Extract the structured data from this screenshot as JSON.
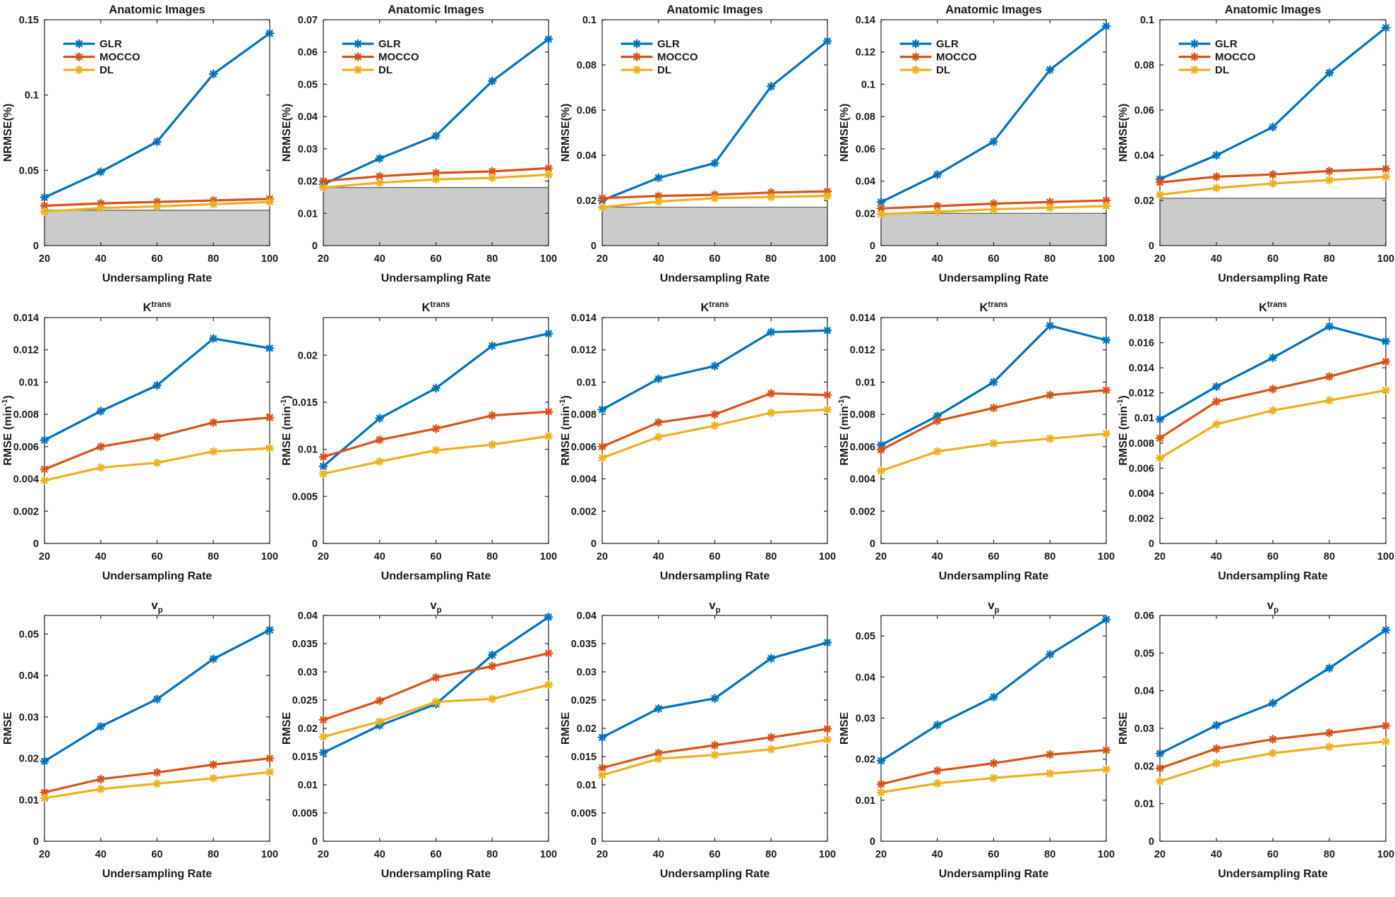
{
  "figure": {
    "x_label": "Undersampling Rate",
    "x_ticks": [
      20,
      40,
      60,
      80,
      100
    ],
    "legend_labels": [
      "GLR",
      "MOCCO",
      "DL"
    ],
    "colors": {
      "GLR": "#0072BD",
      "MOCCO": "#D95319",
      "DL": "#EDB120"
    },
    "shaded_region_fill": "#CBCBCB",
    "shaded_region_edge": "#6E6E6E",
    "axis_color": "#262626"
  },
  "chart_data": [
    {
      "type": "line",
      "row": 1,
      "col": 1,
      "title": {
        "text": "Anatomic Images"
      },
      "ylabel": {
        "text": "NRMSE(%)"
      },
      "xlabel": "Undersampling Rate",
      "x": [
        20,
        40,
        60,
        80,
        100
      ],
      "ylim": [
        0,
        0.15
      ],
      "yticks": [
        0,
        0.05,
        0.1,
        0.15
      ],
      "legend_visible": true,
      "shaded_region_top": 0.0235,
      "series": [
        {
          "name": "GLR",
          "values": [
            0.032,
            0.049,
            0.069,
            0.114,
            0.141
          ]
        },
        {
          "name": "MOCCO",
          "values": [
            0.0265,
            0.028,
            0.029,
            0.03,
            0.031
          ]
        },
        {
          "name": "DL",
          "values": [
            0.0225,
            0.025,
            0.026,
            0.0275,
            0.029
          ]
        }
      ]
    },
    {
      "type": "line",
      "row": 1,
      "col": 2,
      "title": {
        "text": "Anatomic Images"
      },
      "ylabel": {
        "text": "NRMSE(%)"
      },
      "xlabel": "Undersampling Rate",
      "x": [
        20,
        40,
        60,
        80,
        100
      ],
      "ylim": [
        0,
        0.07
      ],
      "yticks": [
        0,
        0.01,
        0.02,
        0.03,
        0.04,
        0.05,
        0.06,
        0.07
      ],
      "legend_visible": true,
      "shaded_region_top": 0.018,
      "series": [
        {
          "name": "GLR",
          "values": [
            0.019,
            0.027,
            0.034,
            0.051,
            0.064
          ]
        },
        {
          "name": "MOCCO",
          "values": [
            0.02,
            0.0215,
            0.0225,
            0.023,
            0.024
          ]
        },
        {
          "name": "DL",
          "values": [
            0.018,
            0.0195,
            0.0205,
            0.021,
            0.022
          ]
        }
      ]
    },
    {
      "type": "line",
      "row": 1,
      "col": 3,
      "title": {
        "text": "Anatomic Images"
      },
      "ylabel": {
        "text": "NRMSE(%)"
      },
      "xlabel": "Undersampling Rate",
      "x": [
        20,
        40,
        60,
        80,
        100
      ],
      "ylim": [
        0,
        0.1
      ],
      "yticks": [
        0,
        0.02,
        0.04,
        0.06,
        0.08,
        0.1
      ],
      "legend_visible": true,
      "shaded_region_top": 0.017,
      "series": [
        {
          "name": "GLR",
          "values": [
            0.02,
            0.03,
            0.0365,
            0.0705,
            0.0905
          ]
        },
        {
          "name": "MOCCO",
          "values": [
            0.021,
            0.022,
            0.0225,
            0.0235,
            0.024
          ]
        },
        {
          "name": "DL",
          "values": [
            0.017,
            0.0195,
            0.021,
            0.0215,
            0.022
          ]
        }
      ]
    },
    {
      "type": "line",
      "row": 1,
      "col": 4,
      "title": {
        "text": "Anatomic Images"
      },
      "ylabel": {
        "text": "NRMSE(%)"
      },
      "xlabel": "Undersampling Rate",
      "x": [
        20,
        40,
        60,
        80,
        100
      ],
      "ylim": [
        0,
        0.14
      ],
      "yticks": [
        0,
        0.02,
        0.04,
        0.06,
        0.08,
        0.1,
        0.12,
        0.14
      ],
      "legend_visible": true,
      "shaded_region_top": 0.02,
      "series": [
        {
          "name": "GLR",
          "values": [
            0.027,
            0.044,
            0.0645,
            0.109,
            0.136
          ]
        },
        {
          "name": "MOCCO",
          "values": [
            0.023,
            0.0245,
            0.026,
            0.027,
            0.028
          ]
        },
        {
          "name": "DL",
          "values": [
            0.0195,
            0.021,
            0.0225,
            0.0235,
            0.0245
          ]
        }
      ]
    },
    {
      "type": "line",
      "row": 1,
      "col": 5,
      "title": {
        "text": "Anatomic Images"
      },
      "ylabel": {
        "text": "NRMSE(%)"
      },
      "xlabel": "Undersampling Rate",
      "x": [
        20,
        40,
        60,
        80,
        100
      ],
      "ylim": [
        0,
        0.1
      ],
      "yticks": [
        0,
        0.02,
        0.04,
        0.06,
        0.08,
        0.1
      ],
      "legend_visible": true,
      "shaded_region_top": 0.021,
      "series": [
        {
          "name": "GLR",
          "values": [
            0.0295,
            0.04,
            0.0525,
            0.0765,
            0.0965
          ]
        },
        {
          "name": "MOCCO",
          "values": [
            0.028,
            0.0305,
            0.0315,
            0.033,
            0.034
          ]
        },
        {
          "name": "DL",
          "values": [
            0.0225,
            0.0255,
            0.0275,
            0.029,
            0.0305
          ]
        }
      ]
    },
    {
      "type": "line",
      "row": 2,
      "col": 1,
      "title": {
        "text": "K",
        "sup": "trans"
      },
      "ylabel": {
        "text": "RMSE (min",
        "sup": "-1",
        "after": ")"
      },
      "xlabel": "Undersampling Rate",
      "x": [
        20,
        40,
        60,
        80,
        100
      ],
      "ylim": [
        0,
        0.014
      ],
      "yticks": [
        0,
        0.002,
        0.004,
        0.006,
        0.008,
        0.01,
        0.012,
        0.014
      ],
      "legend_visible": false,
      "series": [
        {
          "name": "GLR",
          "values": [
            0.0064,
            0.0082,
            0.0098,
            0.0127,
            0.0121
          ]
        },
        {
          "name": "MOCCO",
          "values": [
            0.0046,
            0.006,
            0.0066,
            0.0075,
            0.0078
          ]
        },
        {
          "name": "DL",
          "values": [
            0.0039,
            0.0047,
            0.005,
            0.0057,
            0.0059
          ]
        }
      ]
    },
    {
      "type": "line",
      "row": 2,
      "col": 2,
      "title": {
        "text": "K",
        "sup": "trans"
      },
      "ylabel": {
        "text": "RMSE (min",
        "sup": "-1",
        "after": ")"
      },
      "xlabel": "Undersampling Rate",
      "x": [
        20,
        40,
        60,
        80,
        100
      ],
      "ylim": [
        0,
        0.024
      ],
      "yticks": [
        0,
        0.005,
        0.01,
        0.015,
        0.02
      ],
      "legend_visible": false,
      "series": [
        {
          "name": "GLR",
          "values": [
            0.0082,
            0.0133,
            0.0165,
            0.021,
            0.0223
          ]
        },
        {
          "name": "MOCCO",
          "values": [
            0.0092,
            0.011,
            0.0122,
            0.0136,
            0.014
          ]
        },
        {
          "name": "DL",
          "values": [
            0.0074,
            0.0087,
            0.0099,
            0.0105,
            0.0114
          ]
        }
      ]
    },
    {
      "type": "line",
      "row": 2,
      "col": 3,
      "title": {
        "text": "K",
        "sup": "trans"
      },
      "ylabel": {
        "text": "RMSE (min",
        "sup": "-1",
        "after": ")"
      },
      "xlabel": "Undersampling Rate",
      "x": [
        20,
        40,
        60,
        80,
        100
      ],
      "ylim": [
        0,
        0.014
      ],
      "yticks": [
        0,
        0.002,
        0.004,
        0.006,
        0.008,
        0.01,
        0.012,
        0.014
      ],
      "legend_visible": false,
      "series": [
        {
          "name": "GLR",
          "values": [
            0.0083,
            0.0102,
            0.011,
            0.0131,
            0.0132
          ]
        },
        {
          "name": "MOCCO",
          "values": [
            0.006,
            0.0075,
            0.008,
            0.0093,
            0.0092
          ]
        },
        {
          "name": "DL",
          "values": [
            0.0053,
            0.0066,
            0.0073,
            0.0081,
            0.0083
          ]
        }
      ]
    },
    {
      "type": "line",
      "row": 2,
      "col": 4,
      "title": {
        "text": "K",
        "sup": "trans"
      },
      "ylabel": {
        "text": "RMSE (min",
        "sup": "-1",
        "after": ")"
      },
      "xlabel": "Undersampling Rate",
      "x": [
        20,
        40,
        60,
        80,
        100
      ],
      "ylim": [
        0,
        0.014
      ],
      "yticks": [
        0,
        0.002,
        0.004,
        0.006,
        0.008,
        0.01,
        0.012,
        0.014
      ],
      "legend_visible": false,
      "series": [
        {
          "name": "GLR",
          "values": [
            0.0061,
            0.0079,
            0.01,
            0.0135,
            0.0126
          ]
        },
        {
          "name": "MOCCO",
          "values": [
            0.0058,
            0.0076,
            0.0084,
            0.0092,
            0.0095
          ]
        },
        {
          "name": "DL",
          "values": [
            0.0045,
            0.0057,
            0.0062,
            0.0065,
            0.0068
          ]
        }
      ]
    },
    {
      "type": "line",
      "row": 2,
      "col": 5,
      "title": {
        "text": "K",
        "sup": "trans"
      },
      "ylabel": {
        "text": "RMSE (min",
        "sup": "-1",
        "after": ")"
      },
      "xlabel": "Undersampling Rate",
      "x": [
        20,
        40,
        60,
        80,
        100
      ],
      "ylim": [
        0,
        0.018
      ],
      "yticks": [
        0,
        0.002,
        0.004,
        0.006,
        0.008,
        0.01,
        0.012,
        0.014,
        0.016,
        0.018
      ],
      "legend_visible": false,
      "series": [
        {
          "name": "GLR",
          "values": [
            0.0099,
            0.0125,
            0.0148,
            0.0173,
            0.0161
          ]
        },
        {
          "name": "MOCCO",
          "values": [
            0.0084,
            0.0113,
            0.0123,
            0.0133,
            0.0145
          ]
        },
        {
          "name": "DL",
          "values": [
            0.0068,
            0.0095,
            0.0106,
            0.0114,
            0.0122
          ]
        }
      ]
    },
    {
      "type": "line",
      "row": 3,
      "col": 1,
      "title": {
        "text": "v",
        "sub": "p"
      },
      "ylabel": {
        "text": "RMSE"
      },
      "xlabel": "Undersampling Rate",
      "x": [
        20,
        40,
        60,
        80,
        100
      ],
      "ylim": [
        0,
        0.0545
      ],
      "yticks": [
        0,
        0.01,
        0.02,
        0.03,
        0.04,
        0.05
      ],
      "legend_visible": false,
      "series": [
        {
          "name": "GLR",
          "values": [
            0.0193,
            0.0277,
            0.0343,
            0.044,
            0.051
          ]
        },
        {
          "name": "MOCCO",
          "values": [
            0.0118,
            0.015,
            0.0166,
            0.0185,
            0.02
          ]
        },
        {
          "name": "DL",
          "values": [
            0.0104,
            0.0126,
            0.0139,
            0.0152,
            0.0167
          ]
        }
      ]
    },
    {
      "type": "line",
      "row": 3,
      "col": 2,
      "title": {
        "text": "v",
        "sub": "p"
      },
      "ylabel": {
        "text": "RMSE"
      },
      "xlabel": "Undersampling Rate",
      "x": [
        20,
        40,
        60,
        80,
        100
      ],
      "ylim": [
        0,
        0.04
      ],
      "yticks": [
        0,
        0.005,
        0.01,
        0.015,
        0.02,
        0.025,
        0.03,
        0.035,
        0.04
      ],
      "legend_visible": false,
      "series": [
        {
          "name": "GLR",
          "values": [
            0.0157,
            0.0205,
            0.0243,
            0.033,
            0.0397
          ]
        },
        {
          "name": "MOCCO",
          "values": [
            0.0215,
            0.0249,
            0.029,
            0.031,
            0.0333
          ]
        },
        {
          "name": "DL",
          "values": [
            0.0185,
            0.0212,
            0.0247,
            0.0252,
            0.0277
          ]
        }
      ]
    },
    {
      "type": "line",
      "row": 3,
      "col": 3,
      "title": {
        "text": "v",
        "sub": "p"
      },
      "ylabel": {
        "text": "RMSE"
      },
      "xlabel": "Undersampling Rate",
      "x": [
        20,
        40,
        60,
        80,
        100
      ],
      "ylim": [
        0,
        0.04
      ],
      "yticks": [
        0,
        0.005,
        0.01,
        0.015,
        0.02,
        0.025,
        0.03,
        0.035,
        0.04
      ],
      "legend_visible": false,
      "series": [
        {
          "name": "GLR",
          "values": [
            0.0184,
            0.0235,
            0.0253,
            0.0324,
            0.0352
          ]
        },
        {
          "name": "MOCCO",
          "values": [
            0.013,
            0.0156,
            0.017,
            0.0184,
            0.0199
          ]
        },
        {
          "name": "DL",
          "values": [
            0.0117,
            0.0146,
            0.0153,
            0.0163,
            0.018
          ]
        }
      ]
    },
    {
      "type": "line",
      "row": 3,
      "col": 4,
      "title": {
        "text": "v",
        "sub": "p"
      },
      "ylabel": {
        "text": "RMSE"
      },
      "xlabel": "Undersampling Rate",
      "x": [
        20,
        40,
        60,
        80,
        100
      ],
      "ylim": [
        0,
        0.055
      ],
      "yticks": [
        0,
        0.01,
        0.02,
        0.03,
        0.04,
        0.05
      ],
      "legend_visible": false,
      "series": [
        {
          "name": "GLR",
          "values": [
            0.0196,
            0.0283,
            0.0351,
            0.0455,
            0.054
          ]
        },
        {
          "name": "MOCCO",
          "values": [
            0.0139,
            0.0172,
            0.019,
            0.0211,
            0.0222
          ]
        },
        {
          "name": "DL",
          "values": [
            0.0119,
            0.0141,
            0.0154,
            0.0165,
            0.0175
          ]
        }
      ]
    },
    {
      "type": "line",
      "row": 3,
      "col": 5,
      "title": {
        "text": "v",
        "sub": "p"
      },
      "ylabel": {
        "text": "RMSE"
      },
      "xlabel": "Undersampling Rate",
      "x": [
        20,
        40,
        60,
        80,
        100
      ],
      "ylim": [
        0,
        0.06
      ],
      "yticks": [
        0,
        0.01,
        0.02,
        0.03,
        0.04,
        0.05,
        0.06
      ],
      "legend_visible": false,
      "series": [
        {
          "name": "GLR",
          "values": [
            0.0233,
            0.0308,
            0.0367,
            0.046,
            0.0561
          ]
        },
        {
          "name": "MOCCO",
          "values": [
            0.0194,
            0.0246,
            0.0271,
            0.0288,
            0.0307
          ]
        },
        {
          "name": "DL",
          "values": [
            0.0159,
            0.0207,
            0.0234,
            0.0251,
            0.0265
          ]
        }
      ]
    }
  ]
}
